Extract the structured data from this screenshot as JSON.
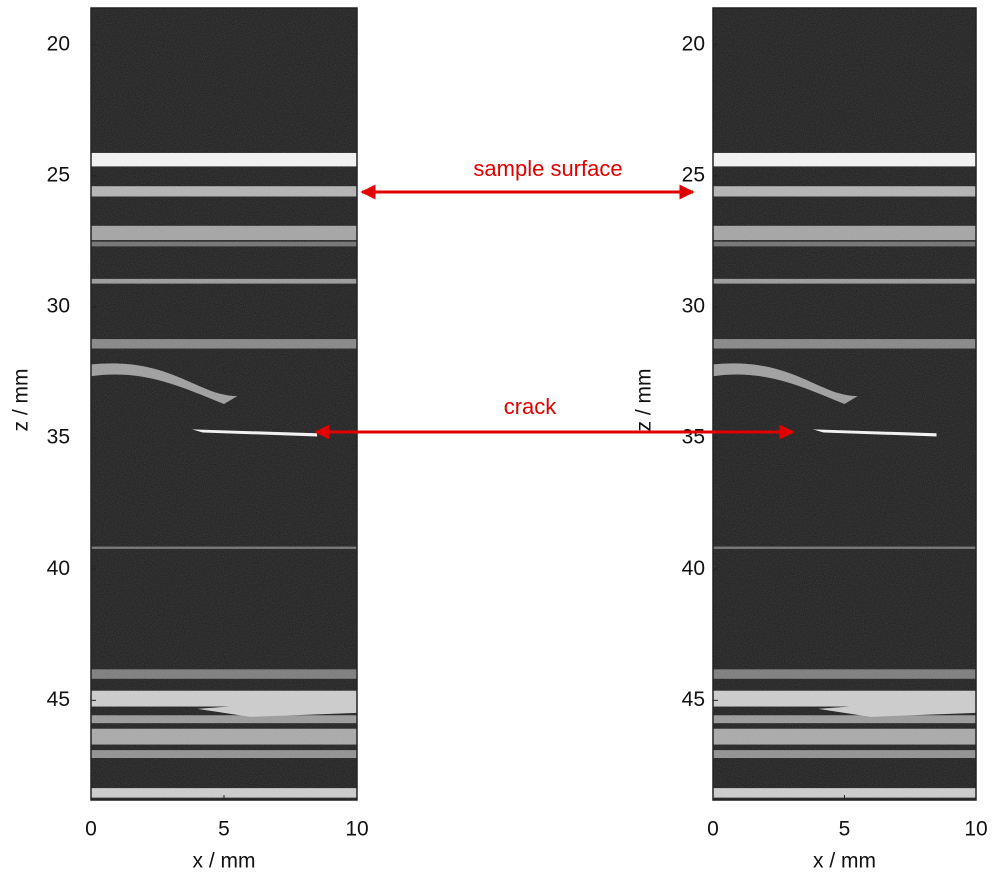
{
  "chart_data": [
    {
      "type": "image",
      "xlabel": "x  /  mm",
      "ylabel": "z  /  mm",
      "xlim": [
        0,
        10
      ],
      "ylim": [
        18.6,
        48.8
      ],
      "xticks": [
        0,
        5,
        10
      ],
      "yticks": [
        20,
        25,
        30,
        35,
        40,
        45
      ]
    },
    {
      "type": "image",
      "xlabel": "x  /  mm",
      "ylabel": "z  /  mm",
      "xlim": [
        0,
        10
      ],
      "ylim": [
        18.6,
        48.8
      ],
      "xticks": [
        0,
        5,
        10
      ],
      "yticks": [
        20,
        25,
        30,
        35,
        40,
        45
      ]
    }
  ],
  "annotations": [
    "sample surface",
    "crack"
  ]
}
